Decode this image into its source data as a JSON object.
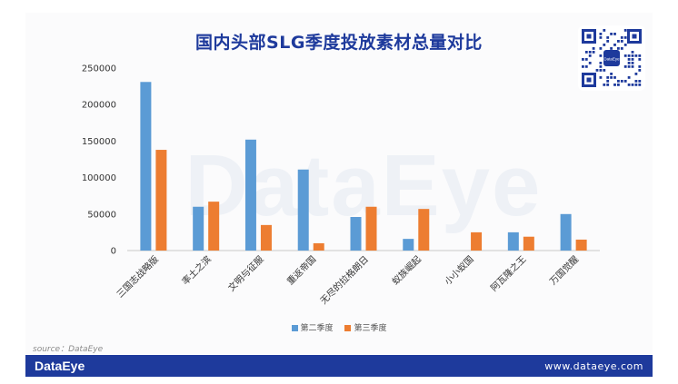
{
  "page": {
    "title": "国内头部SLG季度投放素材总量对比",
    "source": "source：DataEye",
    "watermark": "DataEye",
    "footer_brand": "DataEye",
    "footer_site": "www.dataeye.com",
    "qr_center_label": "DataEye"
  },
  "colors": {
    "primary": "#1e3a9c",
    "series_q2": "#5b9bd5",
    "series_q3": "#ed7d31"
  },
  "chart_data": {
    "type": "bar",
    "title": "国内头部SLG季度投放素材总量对比",
    "categories": [
      "三国志战略版",
      "率土之滨",
      "文明与征服",
      "重返帝国",
      "无尽的拉格朗日",
      "蚁族崛起",
      "小小蚁国",
      "阿瓦隆之王",
      "万国觉醒"
    ],
    "series": [
      {
        "name": "第二季度",
        "values": [
          231000,
          60000,
          152000,
          111000,
          46000,
          16000,
          0,
          25000,
          50000
        ]
      },
      {
        "name": "第三季度",
        "values": [
          138000,
          67000,
          35000,
          10000,
          60000,
          57000,
          25000,
          19000,
          15000
        ]
      }
    ],
    "yticks": [
      "0",
      "50000",
      "100000",
      "150000",
      "200000",
      "250000"
    ],
    "ylim": [
      0,
      250000
    ],
    "grid": false,
    "legend": "bottom"
  }
}
